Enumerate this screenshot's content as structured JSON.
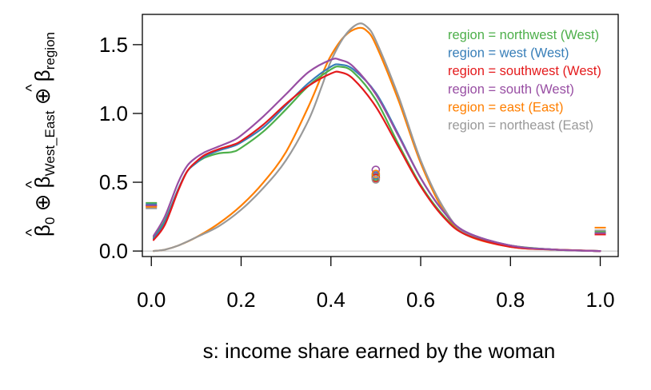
{
  "chart_data": {
    "type": "line",
    "title": "",
    "xlabel": "s: income share earned by the woman",
    "ylabel": {
      "parts": [
        "β",
        "0",
        " ⊕ ",
        "β",
        "West_East",
        " ⊕ ",
        "β",
        "region"
      ],
      "hat": "^"
    },
    "xlim": [
      -0.02,
      1.04
    ],
    "ylim": [
      -0.04,
      1.72
    ],
    "x_ticks": [
      0.0,
      0.2,
      0.4,
      0.6,
      0.8,
      1.0
    ],
    "x_tick_labels": [
      "0.0",
      "0.2",
      "0.4",
      "0.6",
      "0.8",
      "1.0"
    ],
    "y_ticks": [
      0.0,
      0.5,
      1.0,
      1.5
    ],
    "y_tick_labels": [
      "0.0",
      "0.5",
      "1.0",
      "1.5"
    ],
    "reference_line_y": 0,
    "legend_position": "top-right",
    "series": [
      {
        "name": "region = northwest (West)",
        "color": "#4daf4a",
        "x": [
          0.005,
          0.03,
          0.06,
          0.08,
          0.1,
          0.12,
          0.15,
          0.18,
          0.2,
          0.25,
          0.3,
          0.35,
          0.4,
          0.42,
          0.45,
          0.5,
          0.55,
          0.6,
          0.65,
          0.7,
          0.8,
          0.9,
          1.0
        ],
        "y": [
          0.1,
          0.22,
          0.45,
          0.58,
          0.64,
          0.68,
          0.71,
          0.72,
          0.75,
          0.87,
          1.03,
          1.2,
          1.32,
          1.34,
          1.3,
          1.1,
          0.78,
          0.48,
          0.26,
          0.12,
          0.04,
          0.01,
          0.0
        ]
      },
      {
        "name": "region = west (West)",
        "color": "#377eb8",
        "x": [
          0.005,
          0.03,
          0.06,
          0.08,
          0.1,
          0.12,
          0.15,
          0.18,
          0.2,
          0.25,
          0.3,
          0.35,
          0.4,
          0.42,
          0.45,
          0.5,
          0.55,
          0.6,
          0.65,
          0.7,
          0.8,
          0.9,
          1.0
        ],
        "y": [
          0.09,
          0.21,
          0.45,
          0.58,
          0.64,
          0.69,
          0.73,
          0.76,
          0.79,
          0.9,
          1.06,
          1.22,
          1.34,
          1.355,
          1.32,
          1.15,
          0.85,
          0.53,
          0.29,
          0.14,
          0.04,
          0.01,
          0.0
        ]
      },
      {
        "name": "region = southwest (West)",
        "color": "#e41a1c",
        "x": [
          0.005,
          0.03,
          0.06,
          0.08,
          0.1,
          0.12,
          0.15,
          0.18,
          0.2,
          0.25,
          0.3,
          0.35,
          0.4,
          0.42,
          0.45,
          0.5,
          0.55,
          0.6,
          0.65,
          0.7,
          0.8,
          0.9,
          1.0
        ],
        "y": [
          0.08,
          0.19,
          0.44,
          0.58,
          0.65,
          0.7,
          0.74,
          0.77,
          0.8,
          0.92,
          1.07,
          1.2,
          1.29,
          1.3,
          1.25,
          1.05,
          0.76,
          0.47,
          0.25,
          0.12,
          0.03,
          0.01,
          0.0
        ]
      },
      {
        "name": "region = south (West)",
        "color": "#984ea3",
        "x": [
          0.005,
          0.03,
          0.06,
          0.08,
          0.1,
          0.12,
          0.15,
          0.18,
          0.2,
          0.25,
          0.3,
          0.35,
          0.4,
          0.42,
          0.45,
          0.5,
          0.55,
          0.6,
          0.65,
          0.7,
          0.8,
          0.9,
          1.0
        ],
        "y": [
          0.11,
          0.25,
          0.5,
          0.62,
          0.68,
          0.72,
          0.76,
          0.8,
          0.84,
          0.98,
          1.14,
          1.3,
          1.39,
          1.39,
          1.34,
          1.14,
          0.84,
          0.53,
          0.29,
          0.14,
          0.04,
          0.01,
          0.0
        ]
      },
      {
        "name": "region = east (East)",
        "color": "#ff7f00",
        "x": [
          0.005,
          0.03,
          0.06,
          0.1,
          0.15,
          0.2,
          0.25,
          0.3,
          0.35,
          0.38,
          0.4,
          0.43,
          0.46,
          0.48,
          0.5,
          0.55,
          0.6,
          0.65,
          0.7,
          0.8,
          0.9,
          1.0
        ],
        "y": [
          0.0,
          0.01,
          0.04,
          0.1,
          0.2,
          0.33,
          0.5,
          0.72,
          1.05,
          1.28,
          1.42,
          1.56,
          1.62,
          1.6,
          1.5,
          1.1,
          0.64,
          0.3,
          0.12,
          0.03,
          0.01,
          0.0
        ]
      },
      {
        "name": "region = northeast (East)",
        "color": "#999999",
        "x": [
          0.005,
          0.03,
          0.06,
          0.1,
          0.15,
          0.2,
          0.25,
          0.3,
          0.35,
          0.38,
          0.4,
          0.43,
          0.46,
          0.48,
          0.5,
          0.55,
          0.6,
          0.65,
          0.7,
          0.8,
          0.9,
          1.0
        ],
        "y": [
          0.0,
          0.01,
          0.04,
          0.1,
          0.18,
          0.3,
          0.46,
          0.66,
          0.95,
          1.2,
          1.38,
          1.56,
          1.65,
          1.63,
          1.53,
          1.13,
          0.66,
          0.32,
          0.13,
          0.04,
          0.01,
          0.0
        ]
      }
    ],
    "point_masses": {
      "s0_dashes": [
        0.35,
        0.34,
        0.33,
        0.33,
        0.32,
        0.31
      ],
      "s05_circles": [
        0.54,
        0.55,
        0.53,
        0.59,
        0.56,
        0.52
      ],
      "s1_dashes": [
        0.14,
        0.13,
        0.12,
        0.13,
        0.17,
        0.15
      ]
    }
  }
}
